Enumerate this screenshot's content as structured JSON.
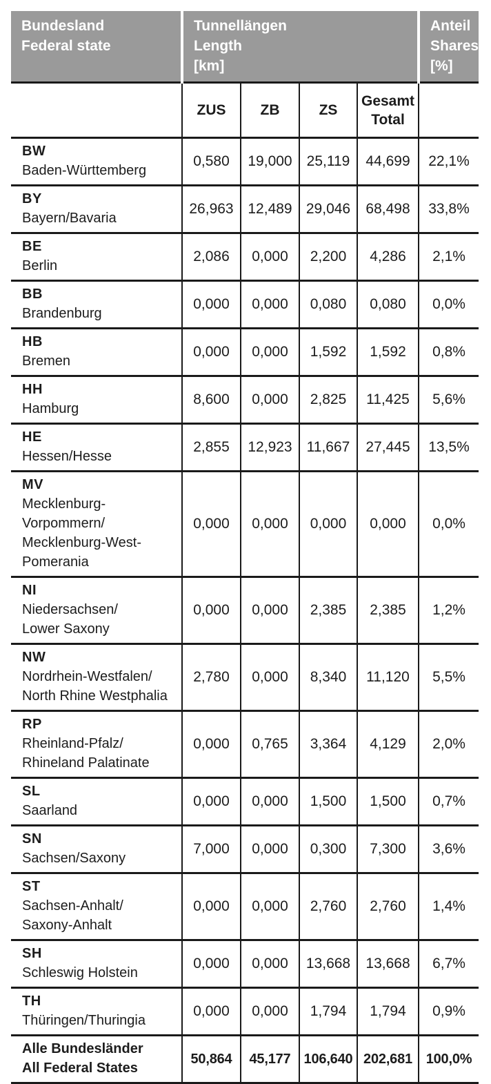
{
  "colors": {
    "header_bg": "#9a9a9a",
    "header_text": "#ffffff",
    "grid_line": "#1a1a1a",
    "body_text": "#1c1c1c",
    "page_bg": "#ffffff"
  },
  "table": {
    "header": {
      "state": "Bundesland\nFederal state",
      "lengths": "Tunnellängen\nLength\n[km]",
      "shares": "Anteil\nShares\n[%]"
    },
    "subheader": {
      "zus": "ZUS",
      "zb": "ZB",
      "zs": "ZS",
      "total": "Gesamt\nTotal"
    },
    "rows": [
      {
        "abbr": "BW",
        "name": "Baden-Württemberg",
        "zus": "0,580",
        "zb": "19,000",
        "zs": "25,119",
        "total": "44,699",
        "share": "22,1%"
      },
      {
        "abbr": "BY",
        "name": "Bayern/Bavaria",
        "zus": "26,963",
        "zb": "12,489",
        "zs": "29,046",
        "total": "68,498",
        "share": "33,8%"
      },
      {
        "abbr": "BE",
        "name": "Berlin",
        "zus": "2,086",
        "zb": "0,000",
        "zs": "2,200",
        "total": "4,286",
        "share": "2,1%"
      },
      {
        "abbr": "BB",
        "name": "Brandenburg",
        "zus": "0,000",
        "zb": "0,000",
        "zs": "0,080",
        "total": "0,080",
        "share": "0,0%"
      },
      {
        "abbr": "HB",
        "name": "Bremen",
        "zus": "0,000",
        "zb": "0,000",
        "zs": "1,592",
        "total": "1,592",
        "share": "0,8%"
      },
      {
        "abbr": "HH",
        "name": "Hamburg",
        "zus": "8,600",
        "zb": "0,000",
        "zs": "2,825",
        "total": "11,425",
        "share": "5,6%"
      },
      {
        "abbr": "HE",
        "name": "Hessen/Hesse",
        "zus": "2,855",
        "zb": "12,923",
        "zs": "11,667",
        "total": "27,445",
        "share": "13,5%"
      },
      {
        "abbr": "MV",
        "name": "Mecklenburg-\nVorpommern/\nMecklenburg-West-\nPomerania",
        "zus": "0,000",
        "zb": "0,000",
        "zs": "0,000",
        "total": "0,000",
        "share": "0,0%"
      },
      {
        "abbr": "NI",
        "name": "Niedersachsen/\nLower Saxony",
        "zus": "0,000",
        "zb": "0,000",
        "zs": "2,385",
        "total": "2,385",
        "share": "1,2%"
      },
      {
        "abbr": "NW",
        "name": "Nordrhein-Westfalen/\nNorth Rhine Westphalia",
        "zus": "2,780",
        "zb": "0,000",
        "zs": "8,340",
        "total": "11,120",
        "share": "5,5%"
      },
      {
        "abbr": "RP",
        "name": "Rheinland-Pfalz/\nRhineland Palatinate",
        "zus": "0,000",
        "zb": "0,765",
        "zs": "3,364",
        "total": "4,129",
        "share": "2,0%"
      },
      {
        "abbr": "SL",
        "name": "Saarland",
        "zus": "0,000",
        "zb": "0,000",
        "zs": "1,500",
        "total": "1,500",
        "share": "0,7%"
      },
      {
        "abbr": "SN",
        "name": "Sachsen/Saxony",
        "zus": "7,000",
        "zb": "0,000",
        "zs": "0,300",
        "total": "7,300",
        "share": "3,6%"
      },
      {
        "abbr": "ST",
        "name": "Sachsen-Anhalt/\nSaxony-Anhalt",
        "zus": "0,000",
        "zb": "0,000",
        "zs": "2,760",
        "total": "2,760",
        "share": "1,4%"
      },
      {
        "abbr": "SH",
        "name": "Schleswig Holstein",
        "zus": "0,000",
        "zb": "0,000",
        "zs": "13,668",
        "total": "13,668",
        "share": "6,7%"
      },
      {
        "abbr": "TH",
        "name": "Thüringen/Thuringia",
        "zus": "0,000",
        "zb": "0,000",
        "zs": "1,794",
        "total": "1,794",
        "share": "0,9%"
      }
    ],
    "total": {
      "label": "Alle Bundesländer\nAll Federal States",
      "zus": "50,864",
      "zb": "45,177",
      "zs": "106,640",
      "total": "202,681",
      "share": "100,0%"
    }
  }
}
